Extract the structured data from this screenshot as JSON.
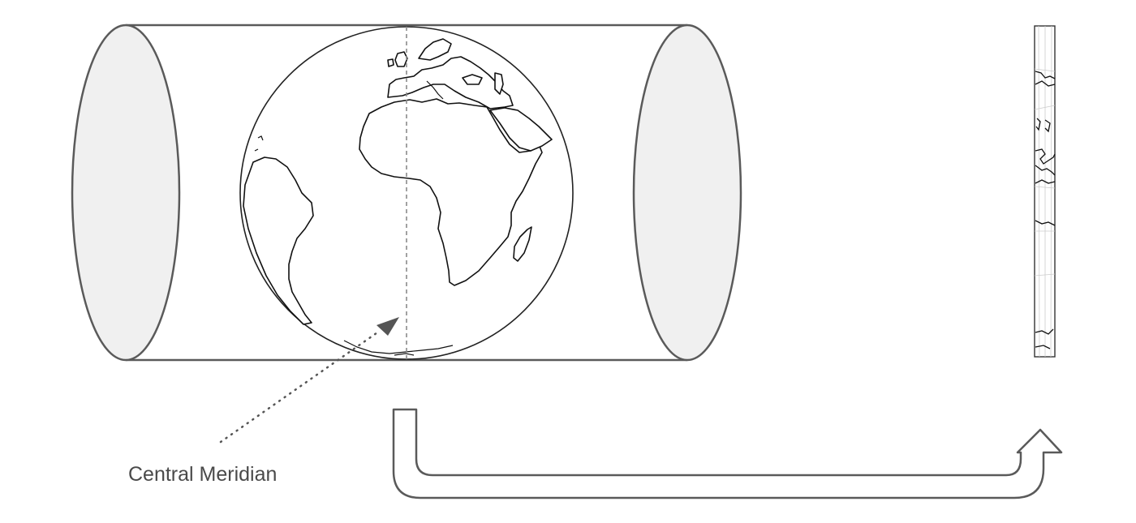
{
  "diagram": {
    "label": "Central Meridian",
    "colors": {
      "outline": "#5a5a5a",
      "cap_fill": "#f0f0f0",
      "coastline": "#111111",
      "meridian": "#8a8a8a",
      "pointer": "#555555",
      "text": "#4a4a4a"
    }
  }
}
